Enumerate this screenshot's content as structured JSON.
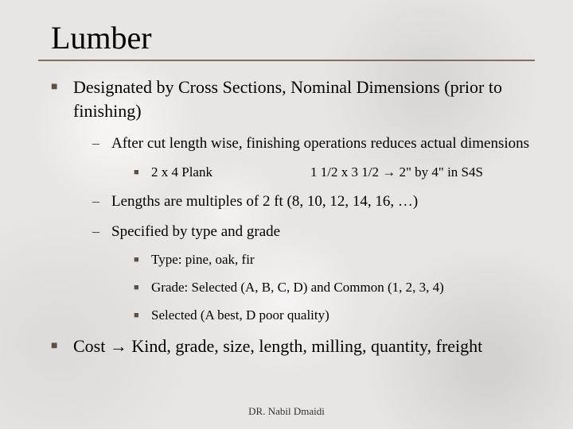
{
  "title": "Lumber",
  "main_point": "Designated by Cross Sections, Nominal Dimensions (prior to finishing)",
  "sub": {
    "a": "After cut length wise, finishing operations reduces actual dimensions",
    "plank_left": "2 x 4 Plank",
    "plank_right": "1 1/2 x 3 1/2 → 2\" by 4\" in S4S",
    "b": "Lengths are multiples of 2 ft (8, 10, 12, 14, 16, …)",
    "c": "Specified by type and grade",
    "c1": "Type: pine, oak, fir",
    "c2": "Grade: Selected (A, B, C, D) and Common (1, 2, 3, 4)",
    "c3": "Selected (A best, D poor quality)"
  },
  "cost_point": "Cost → Kind, grade, size, length, milling, quantity, freight",
  "footer": "DR. Nabil Dmaidi",
  "glyphs": {
    "square": "■",
    "dash": "–"
  }
}
